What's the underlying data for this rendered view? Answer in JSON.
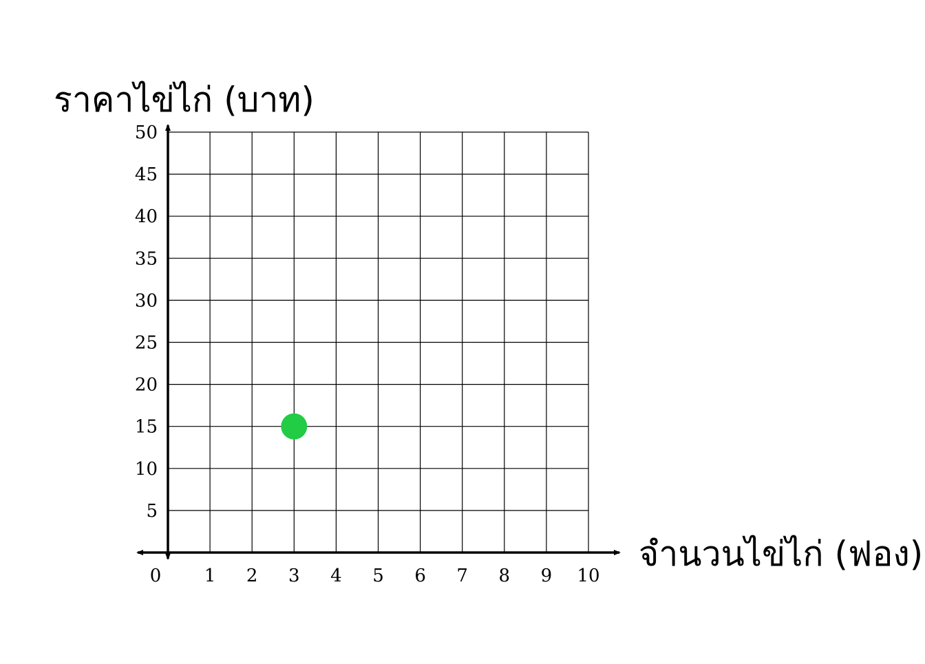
{
  "chart_data": {
    "type": "scatter",
    "xlabel": "จำนวนไข่ไก่ (ฟอง)",
    "ylabel": "ราคาไข่ไก่ (บาท)",
    "xlim": [
      0,
      10
    ],
    "ylim": [
      0,
      50
    ],
    "x_ticks": [
      "0",
      "1",
      "2",
      "3",
      "4",
      "5",
      "6",
      "7",
      "8",
      "9",
      "10"
    ],
    "y_ticks": [
      "5",
      "10",
      "15",
      "20",
      "25",
      "30",
      "35",
      "40",
      "45",
      "50"
    ],
    "grid": true,
    "points": [
      {
        "x": 3,
        "y": 15
      }
    ],
    "colors": {
      "point": "#22cc44",
      "grid": "#000000",
      "axis": "#000000"
    }
  }
}
